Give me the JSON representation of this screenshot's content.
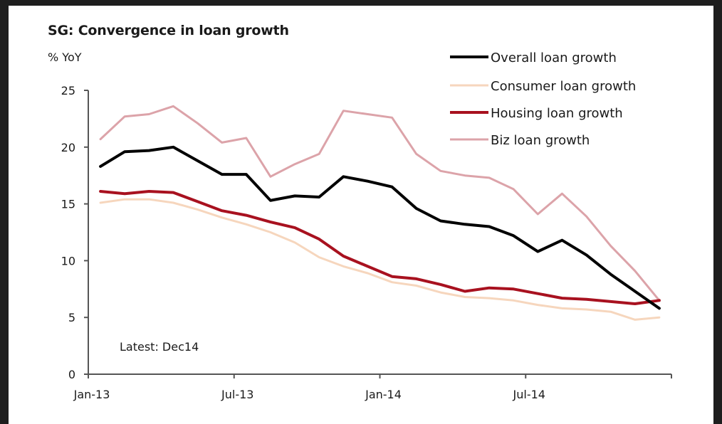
{
  "chart_data": {
    "type": "line",
    "title": "SG: Convergence in loan growth",
    "ylabel": "% YoY",
    "xlabel": "",
    "ylim": [
      0,
      25
    ],
    "yticks": [
      0,
      5,
      10,
      15,
      20,
      25
    ],
    "xtick_labels": [
      "Jan-13",
      "Jul-13",
      "Jan-14",
      "Jul-14"
    ],
    "x": [
      "Jan-13",
      "Feb-13",
      "Mar-13",
      "Apr-13",
      "May-13",
      "Jun-13",
      "Jul-13",
      "Aug-13",
      "Sep-13",
      "Oct-13",
      "Nov-13",
      "Dec-13",
      "Jan-14",
      "Feb-14",
      "Mar-14",
      "Apr-14",
      "May-14",
      "Jun-14",
      "Jul-14",
      "Aug-14",
      "Sep-14",
      "Oct-14",
      "Nov-14",
      "Dec-14"
    ],
    "grid": false,
    "legend_position": "top-right",
    "annotation": "Latest: Dec14",
    "series": [
      {
        "name": "Overall loan growth",
        "color": "#000000",
        "width": 4,
        "values": [
          18.3,
          19.6,
          19.7,
          20.0,
          18.8,
          17.6,
          17.6,
          15.3,
          15.7,
          15.6,
          17.4,
          17.0,
          16.5,
          14.6,
          13.5,
          13.2,
          13.0,
          12.2,
          10.8,
          11.8,
          10.5,
          8.8,
          7.3,
          5.8
        ]
      },
      {
        "name": "Consumer loan growth",
        "color": "#f6d6bd",
        "width": 3,
        "values": [
          15.1,
          15.4,
          15.4,
          15.1,
          14.5,
          13.8,
          13.2,
          12.5,
          11.6,
          10.3,
          9.5,
          8.9,
          8.1,
          7.8,
          7.2,
          6.8,
          6.7,
          6.5,
          6.1,
          5.8,
          5.7,
          5.5,
          4.8,
          5.0
        ]
      },
      {
        "name": "Housing loan growth",
        "color": "#a8111f",
        "width": 4,
        "values": [
          16.1,
          15.9,
          16.1,
          16.0,
          15.2,
          14.4,
          14.0,
          13.4,
          12.9,
          11.9,
          10.4,
          9.5,
          8.6,
          8.4,
          7.9,
          7.3,
          7.6,
          7.5,
          7.1,
          6.7,
          6.6,
          6.4,
          6.2,
          6.5
        ]
      },
      {
        "name": "Biz loan growth",
        "color": "#dca3a9",
        "width": 3,
        "values": [
          20.7,
          22.7,
          22.9,
          23.6,
          22.1,
          20.4,
          20.8,
          17.4,
          18.5,
          19.4,
          23.2,
          22.9,
          22.6,
          19.4,
          17.9,
          17.5,
          17.3,
          16.3,
          14.1,
          15.9,
          13.9,
          11.3,
          9.1,
          6.5
        ]
      }
    ]
  }
}
